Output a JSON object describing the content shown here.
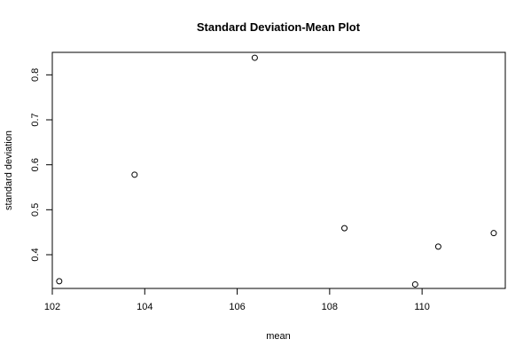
{
  "chart_data": {
    "type": "scatter",
    "title": "Standard Deviation-Mean Plot",
    "xlabel": "mean",
    "ylabel": "standard deviation",
    "xlim": [
      102.0,
      111.8
    ],
    "ylim": [
      0.325,
      0.85
    ],
    "xticks": [
      102,
      104,
      106,
      108,
      110
    ],
    "xtick_labels": [
      "102",
      "104",
      "106",
      "108",
      "110"
    ],
    "yticks": [
      0.4,
      0.5,
      0.6,
      0.7,
      0.8
    ],
    "ytick_labels": [
      "0.4",
      "0.5",
      "0.6",
      "0.7",
      "0.8"
    ],
    "grid": false,
    "points": [
      {
        "x": 102.15,
        "y": 0.341
      },
      {
        "x": 103.78,
        "y": 0.578
      },
      {
        "x": 106.38,
        "y": 0.838
      },
      {
        "x": 108.32,
        "y": 0.459
      },
      {
        "x": 109.85,
        "y": 0.334
      },
      {
        "x": 110.35,
        "y": 0.418
      },
      {
        "x": 111.55,
        "y": 0.448
      }
    ]
  }
}
